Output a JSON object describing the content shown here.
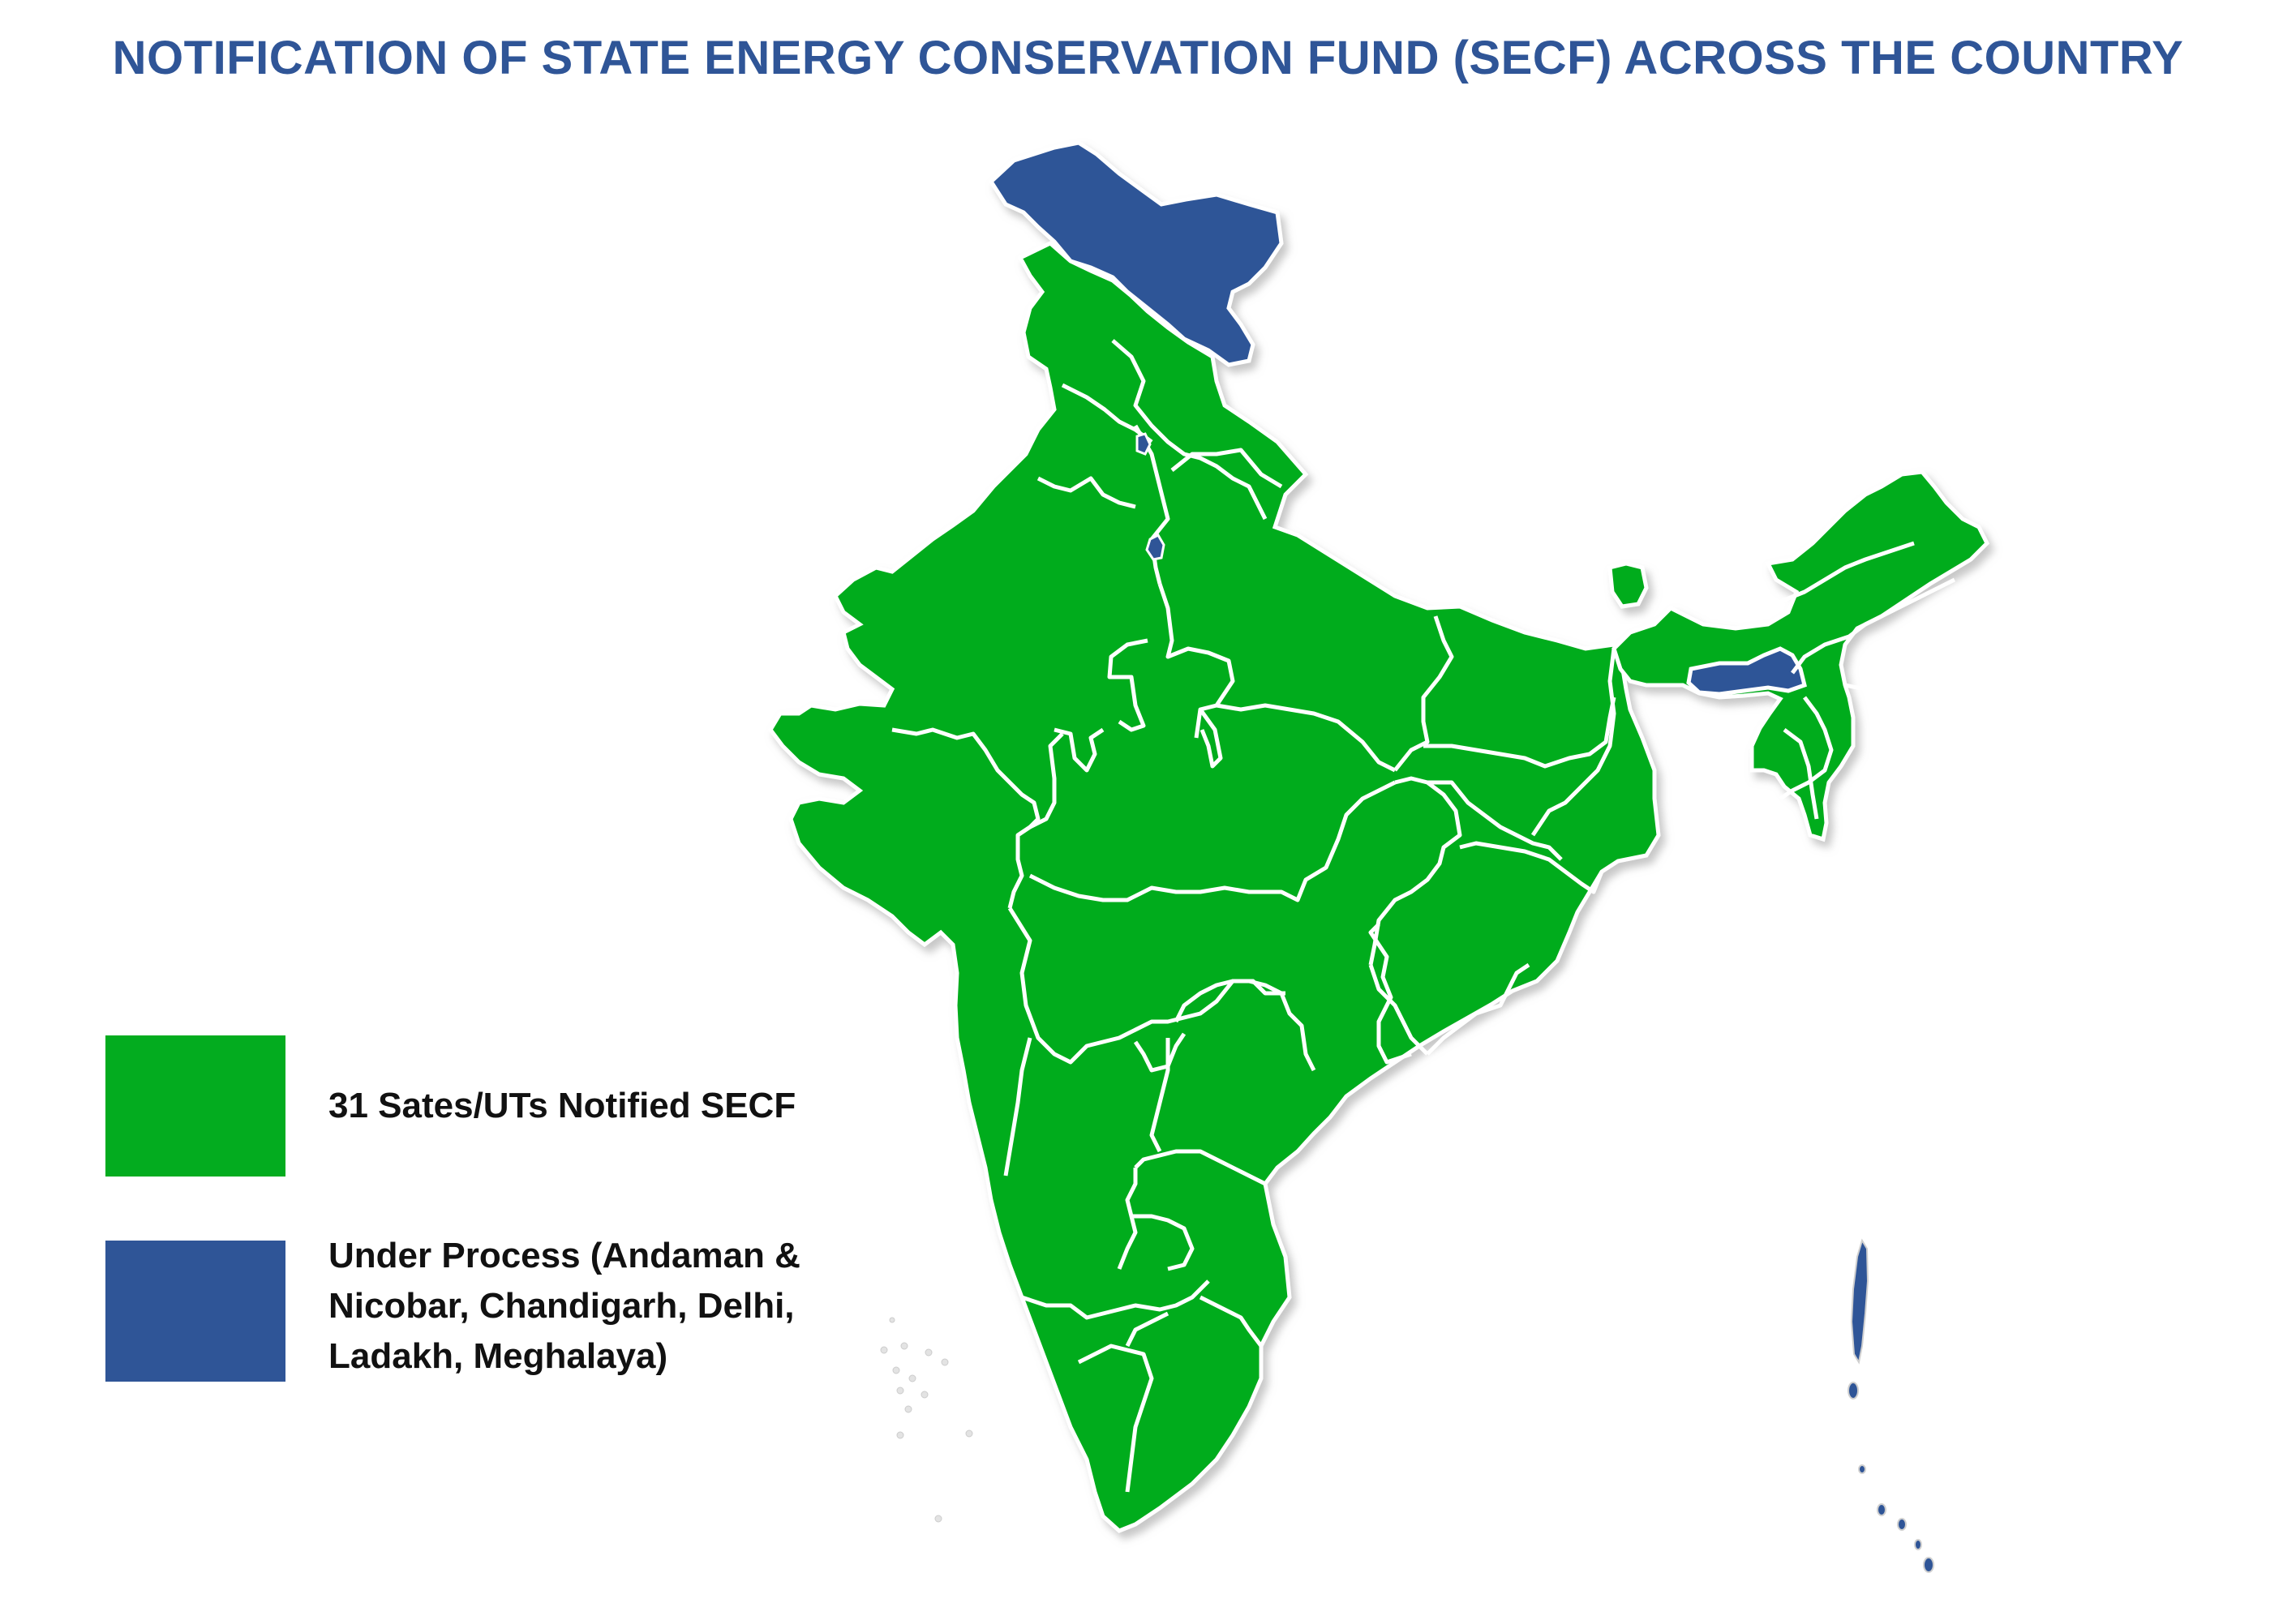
{
  "title": "NOTIFICATION OF STATE ENERGY CONSERVATION FUND (SECF) ACROSS THE COUNTRY",
  "colors": {
    "title": "#2F5597",
    "notified": "#03AC1F",
    "under_process": "#2F5597",
    "border": "#ffffff",
    "shadow": "#cfcfcf"
  },
  "legend": {
    "notified": {
      "label": "31 Sates/UTs Notified SECF",
      "count": 31
    },
    "under_process": {
      "line1": "Under Process (Andaman &",
      "line2": "Nicobar, Chandigarh, Delhi,",
      "line3": "Ladakh, Meghalaya)"
    }
  },
  "regions_under_process": [
    "Andaman & Nicobar",
    "Chandigarh",
    "Delhi",
    "Ladakh",
    "Meghalaya"
  ]
}
